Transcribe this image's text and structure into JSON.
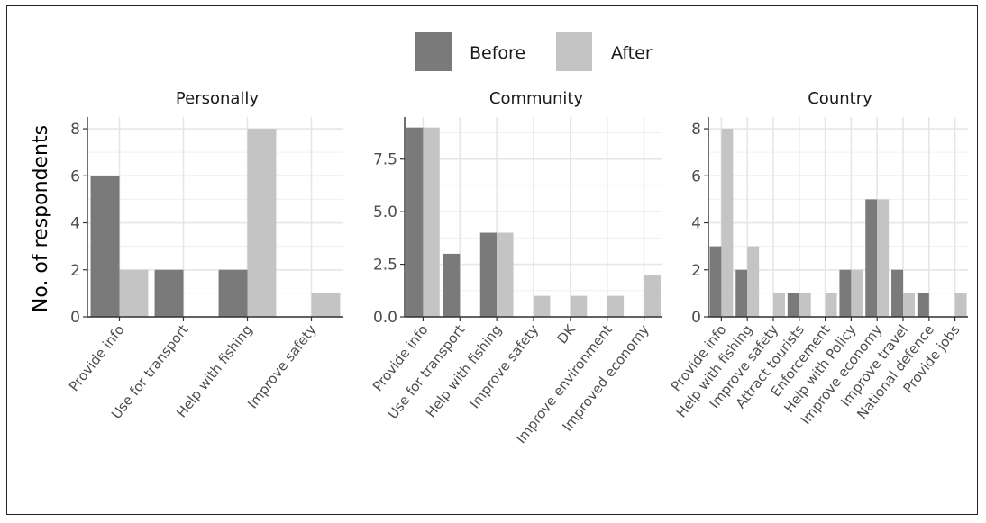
{
  "chart_data": {
    "type": "bar",
    "ylabel": "No. of respondents",
    "legend": {
      "position": "top",
      "entries": [
        {
          "name": "Before",
          "color": "#7a7a7a"
        },
        {
          "name": "After",
          "color": "#c4c4c4"
        }
      ]
    },
    "grid": true,
    "panels": [
      {
        "title": "Personally",
        "ylim": [
          0,
          8.5
        ],
        "yticks": [
          0,
          2,
          4,
          6,
          8
        ],
        "ytick_labels": [
          "0",
          "2",
          "4",
          "6",
          "8"
        ],
        "categories": [
          "Provide info",
          "Use for transport",
          "Help with fishing",
          "Improve safety"
        ],
        "series": [
          {
            "name": "Before",
            "values": [
              6,
              2,
              2,
              0
            ]
          },
          {
            "name": "After",
            "values": [
              2,
              0,
              8,
              1
            ]
          }
        ]
      },
      {
        "title": "Community",
        "ylim": [
          0,
          9.5
        ],
        "yticks": [
          0,
          2.5,
          5,
          7.5
        ],
        "ytick_labels": [
          "0.0",
          "2.5",
          "5.0",
          "7.5"
        ],
        "categories": [
          "Provide info",
          "Use for transport",
          "Help with fishing",
          "Improve safety",
          "DK",
          "Improve environment",
          "Improved economy"
        ],
        "series": [
          {
            "name": "Before",
            "values": [
              9,
              3,
              4,
              0,
              0,
              0,
              0
            ]
          },
          {
            "name": "After",
            "values": [
              9,
              0,
              4,
              1,
              1,
              1,
              2
            ]
          }
        ]
      },
      {
        "title": "Country",
        "ylim": [
          0,
          8.5
        ],
        "yticks": [
          0,
          2,
          4,
          6,
          8
        ],
        "ytick_labels": [
          "0",
          "2",
          "4",
          "6",
          "8"
        ],
        "categories": [
          "Provide info",
          "Help with fishing",
          "Improve safety",
          "Attract tourists",
          "Enforcement",
          "Help with Policy",
          "Improve economy",
          "Improve travel",
          "National defence",
          "Provide jobs"
        ],
        "series": [
          {
            "name": "Before",
            "values": [
              3,
              2,
              0,
              1,
              0,
              2,
              5,
              2,
              1,
              0
            ]
          },
          {
            "name": "After",
            "values": [
              8,
              3,
              1,
              1,
              1,
              2,
              5,
              1,
              0,
              1
            ]
          }
        ]
      }
    ]
  }
}
